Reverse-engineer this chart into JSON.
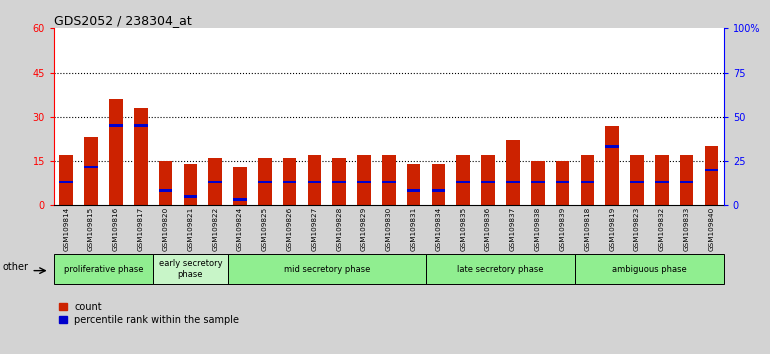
{
  "title": "GDS2052 / 238304_at",
  "samples": [
    "GSM109814",
    "GSM109815",
    "GSM109816",
    "GSM109817",
    "GSM109820",
    "GSM109821",
    "GSM109822",
    "GSM109824",
    "GSM109825",
    "GSM109826",
    "GSM109827",
    "GSM109828",
    "GSM109829",
    "GSM109830",
    "GSM109831",
    "GSM109834",
    "GSM109835",
    "GSM109836",
    "GSM109837",
    "GSM109838",
    "GSM109839",
    "GSM109818",
    "GSM109819",
    "GSM109823",
    "GSM109832",
    "GSM109833",
    "GSM109840"
  ],
  "counts": [
    17,
    23,
    36,
    33,
    15,
    14,
    16,
    13,
    16,
    16,
    17,
    16,
    17,
    17,
    14,
    14,
    17,
    17,
    22,
    15,
    15,
    17,
    27,
    17,
    17,
    17,
    20
  ],
  "percentile_values": [
    8,
    13,
    27,
    27,
    5,
    3,
    8,
    2,
    8,
    8,
    8,
    8,
    8,
    8,
    5,
    5,
    8,
    8,
    8,
    8,
    8,
    8,
    20,
    8,
    8,
    8,
    12
  ],
  "phases": [
    {
      "label": "proliferative phase",
      "start": 0,
      "end": 3,
      "color": "#90ee90"
    },
    {
      "label": "early secretory\nphase",
      "start": 4,
      "end": 6,
      "color": "#c8f5c8"
    },
    {
      "label": "mid secretory phase",
      "start": 7,
      "end": 14,
      "color": "#90ee90"
    },
    {
      "label": "late secretory phase",
      "start": 15,
      "end": 20,
      "color": "#90ee90"
    },
    {
      "label": "ambiguous phase",
      "start": 21,
      "end": 26,
      "color": "#90ee90"
    }
  ],
  "ylim_left": [
    0,
    60
  ],
  "ylim_right": [
    0,
    100
  ],
  "yticks_left": [
    0,
    15,
    30,
    45,
    60
  ],
  "yticks_right": [
    0,
    25,
    50,
    75,
    100
  ],
  "ytick_labels_right": [
    "0",
    "25",
    "50",
    "75",
    "100%"
  ],
  "bar_color": "#cc2200",
  "percentile_color": "#0000cc",
  "background_color": "#d3d3d3",
  "plot_bg_color": "#ffffff",
  "title_fontsize": 9,
  "tick_fontsize": 7,
  "bar_width": 0.55
}
